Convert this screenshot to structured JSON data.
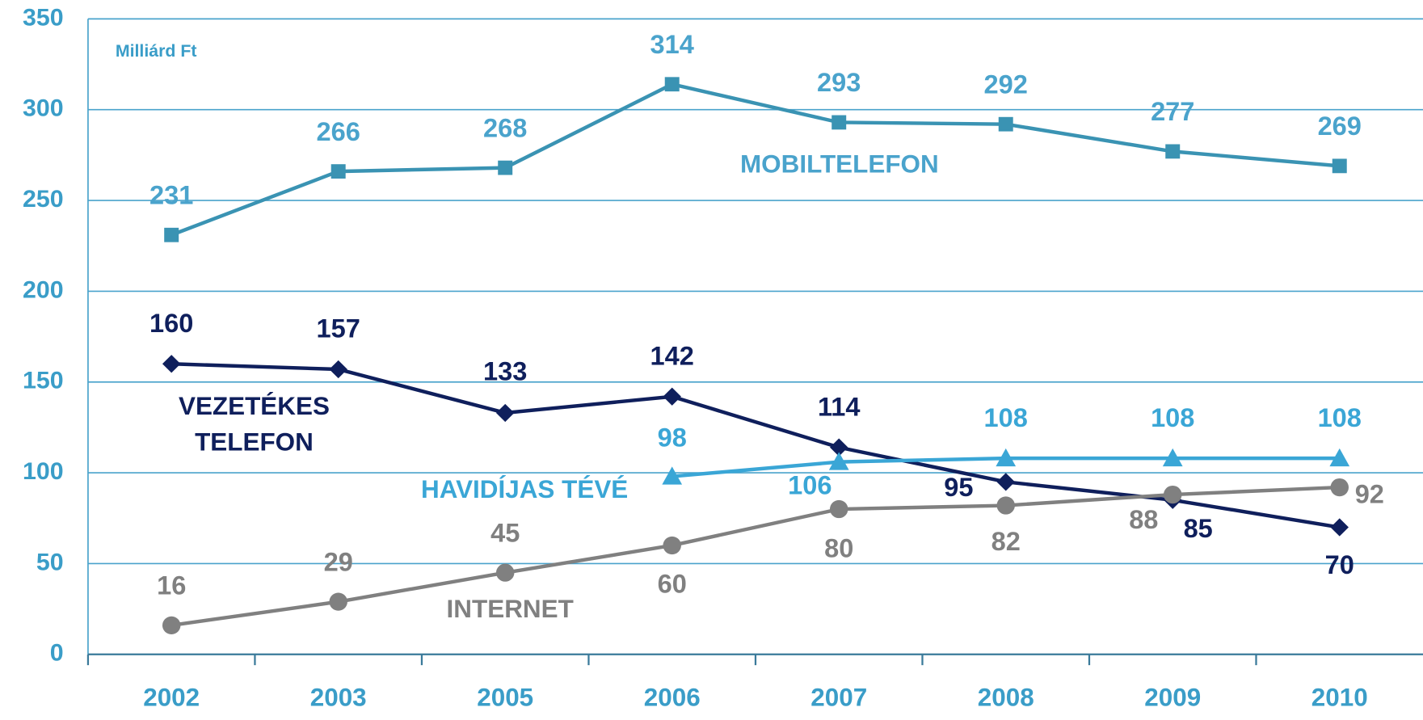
{
  "chart_data": {
    "type": "line",
    "y_label": "Milliárd Ft",
    "categories": [
      "2002",
      "2003",
      "2005",
      "2006",
      "2007",
      "2008",
      "2009",
      "2010"
    ],
    "series": [
      {
        "name": "MOBILTELEFON",
        "color": "#3a93b3",
        "label_color": "#4aa3cc",
        "marker": "square",
        "values": [
          231,
          266,
          268,
          314,
          293,
          292,
          277,
          269
        ]
      },
      {
        "name": "VEZETÉKES TELEFON",
        "color": "#0f1f5c",
        "label_color": "#0f1f5c",
        "marker": "diamond",
        "values": [
          160,
          157,
          133,
          142,
          114,
          95,
          85,
          70
        ]
      },
      {
        "name": "HAVIDÍJAS TÉVÉ",
        "color": "#3aa6d6",
        "label_color": "#3aa6d6",
        "marker": "triangle",
        "values": [
          null,
          null,
          null,
          98,
          106,
          108,
          108,
          108
        ]
      },
      {
        "name": "INTERNET",
        "color": "#808080",
        "label_color": "#808080",
        "marker": "circle",
        "values": [
          16,
          29,
          45,
          60,
          80,
          82,
          88,
          92
        ]
      }
    ],
    "ylim": [
      0,
      350
    ],
    "yticks": [
      0,
      50,
      100,
      150,
      200,
      250,
      300,
      350
    ],
    "grid": true
  }
}
